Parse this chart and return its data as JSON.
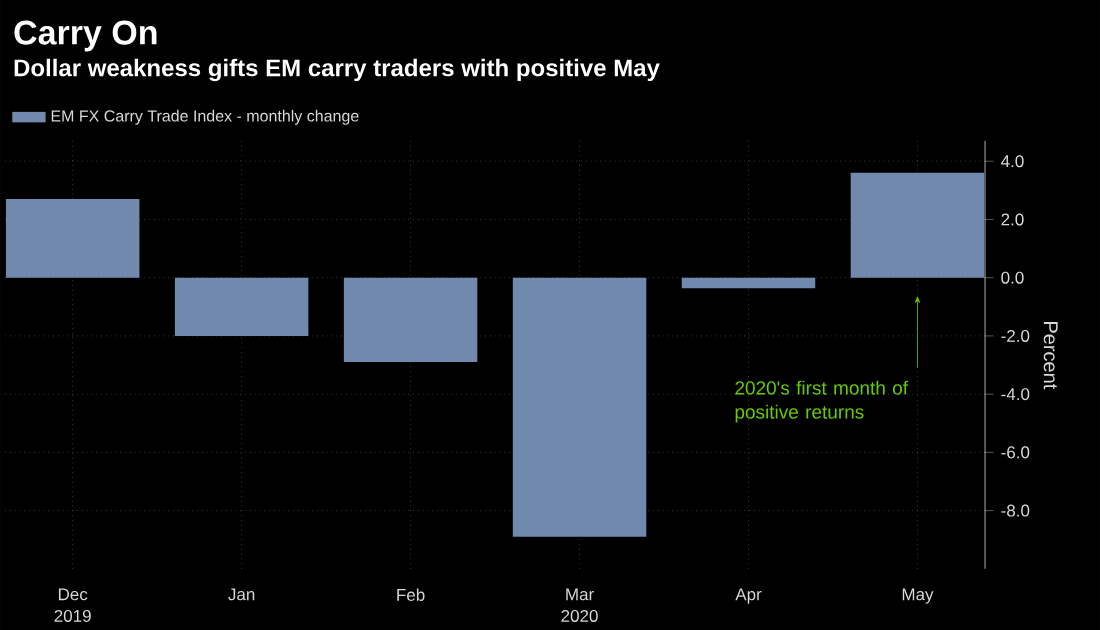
{
  "chart_data": {
    "type": "bar",
    "title": "Carry On",
    "subtitle": "Dollar weakness gifts EM carry traders with positive May",
    "ylabel": "Percent",
    "categories": [
      "Dec",
      "Jan",
      "Feb",
      "Mar",
      "Apr",
      "May"
    ],
    "series": [
      {
        "name": "EM FX Carry Trade Index - monthly change",
        "color": "#7189ad",
        "values": [
          2.7,
          -2.0,
          -2.9,
          -8.9,
          -0.36,
          3.6
        ]
      }
    ],
    "ylim": [
      -10,
      4.7
    ],
    "yticks": [
      {
        "value": 4,
        "label": "4.0"
      },
      {
        "value": 2,
        "label": "2.0"
      },
      {
        "value": 0,
        "label": "0.0"
      },
      {
        "value": -2,
        "label": "-2.0"
      },
      {
        "value": -4,
        "label": "-4.0"
      },
      {
        "value": -6,
        "label": "-6.0"
      },
      {
        "value": -8,
        "label": "-8.0"
      }
    ],
    "grid": true,
    "legend": "top left",
    "annotations": [
      "2019",
      "2020",
      "2020's first month of positive returns"
    ]
  }
}
